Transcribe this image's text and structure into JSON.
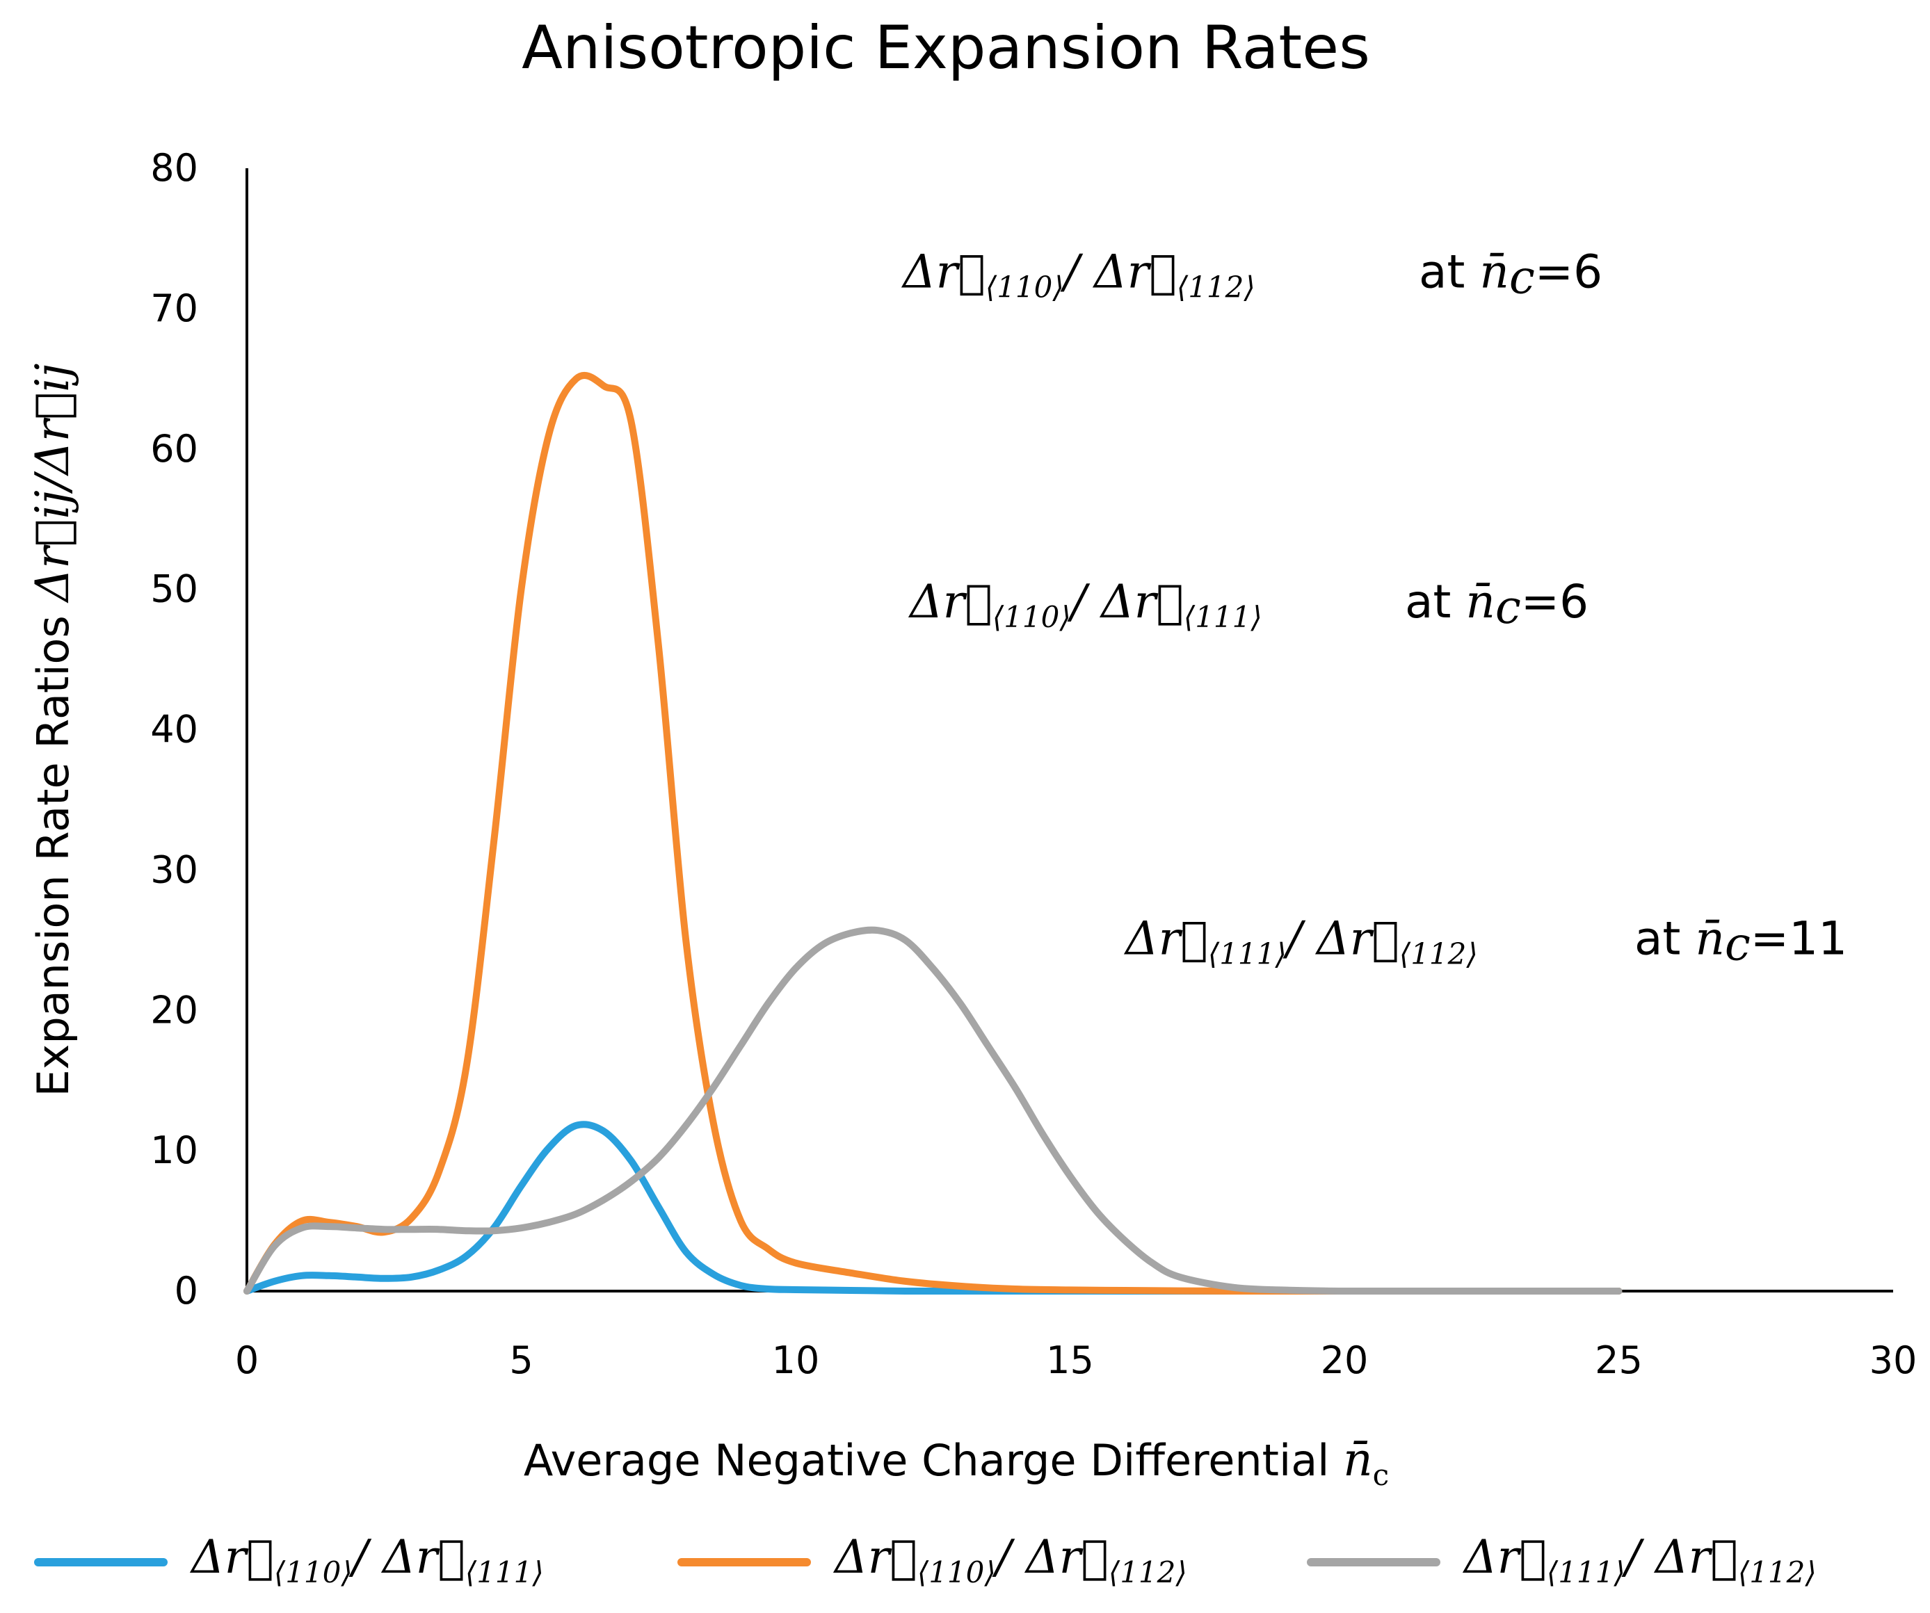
{
  "chart_data": {
    "type": "line",
    "title": "Anisotropic Expansion Rates",
    "xlabel": "Average Negative Charge Differential",
    "xlabel_symbol": "n̄c",
    "ylabel": "Expansion Rate Ratios",
    "ylabel_symbol": "Δr⃗ij/Δr⃗ij",
    "xlim": [
      0,
      30
    ],
    "ylim": [
      0,
      80
    ],
    "xticks": [
      "0",
      "5",
      "10",
      "15",
      "20",
      "25",
      "30"
    ],
    "yticks": [
      "0",
      "10",
      "20",
      "30",
      "40",
      "50",
      "60",
      "70",
      "80"
    ],
    "grid": false,
    "legend_position": "bottom",
    "series": [
      {
        "name": "Δr⃗⟨110⟩/ Δr⃗⟨111⟩",
        "num": "Δr⃗",
        "num_sub": "⟨110⟩",
        "den": "Δr⃗",
        "den_sub": "⟨111⟩",
        "color": "#29a0dd",
        "x": [
          0,
          0.5,
          1,
          1.5,
          2,
          2.5,
          3,
          3.5,
          4,
          4.5,
          5,
          5.5,
          6,
          6.5,
          7,
          7.5,
          8,
          8.5,
          9,
          9.5,
          10,
          11,
          12,
          13,
          14,
          15,
          16,
          17,
          18,
          19,
          20,
          21,
          22,
          23,
          24,
          25
        ],
        "y": [
          0,
          0.7,
          1.1,
          1.1,
          1.0,
          0.9,
          1.0,
          1.5,
          2.5,
          4.5,
          7.5,
          10.2,
          11.8,
          11.4,
          9.3,
          6.0,
          2.8,
          1.2,
          0.4,
          0.15,
          0.1,
          0.05,
          0,
          0,
          0,
          0,
          0,
          0,
          0,
          0,
          0,
          0,
          0,
          0,
          0,
          0
        ]
      },
      {
        "name": "Δr⃗⟨110⟩/ Δr⃗⟨112⟩",
        "num": "Δr⃗",
        "num_sub": "⟨110⟩",
        "den": "Δr⃗",
        "den_sub": "⟨112⟩",
        "color": "#f58a2e",
        "x": [
          0,
          0.5,
          1,
          1.5,
          2,
          2.5,
          3,
          3.5,
          4,
          4.5,
          5,
          5.5,
          6,
          6.5,
          7,
          7.5,
          8,
          8.5,
          9,
          9.5,
          10,
          11,
          12,
          13,
          14,
          15,
          16,
          17,
          18,
          19,
          20,
          21,
          22,
          23,
          24,
          25
        ],
        "y": [
          0,
          3.3,
          5.0,
          4.9,
          4.6,
          4.2,
          5.2,
          8.5,
          16,
          32,
          50,
          61,
          65,
          64.5,
          62,
          46,
          25,
          12,
          5,
          3,
          2,
          1.3,
          0.7,
          0.35,
          0.15,
          0.08,
          0.05,
          0.02,
          0,
          0,
          0,
          0,
          0,
          0,
          0,
          0
        ]
      },
      {
        "name": "Δr⃗⟨111⟩/ Δr⃗⟨112⟩",
        "num": "Δr⃗",
        "num_sub": "⟨111⟩",
        "den": "Δr⃗",
        "den_sub": "⟨112⟩",
        "color": "#a5a5a5",
        "x": [
          0,
          0.5,
          1,
          1.5,
          2,
          2.5,
          3,
          3.5,
          4,
          4.5,
          5,
          5.5,
          6,
          6.5,
          7,
          7.5,
          8,
          8.5,
          9,
          9.5,
          10,
          10.5,
          11,
          11.5,
          12,
          12.5,
          13,
          13.5,
          14,
          14.5,
          15,
          15.5,
          16,
          16.5,
          17,
          18,
          19,
          20,
          21,
          22,
          23,
          24,
          25
        ],
        "y": [
          0,
          3.2,
          4.5,
          4.6,
          4.5,
          4.4,
          4.4,
          4.4,
          4.3,
          4.3,
          4.5,
          4.9,
          5.5,
          6.5,
          7.8,
          9.5,
          11.8,
          14.5,
          17.5,
          20.5,
          23,
          24.7,
          25.5,
          25.7,
          25,
          23,
          20.5,
          17.5,
          14.5,
          11.2,
          8.2,
          5.6,
          3.6,
          2.0,
          1.0,
          0.25,
          0.06,
          0,
          0,
          0,
          0,
          0,
          0
        ]
      }
    ],
    "annotations": [
      {
        "num": "Δr⃗",
        "num_sub": "⟨110⟩",
        "den": "Δr⃗",
        "den_sub": "⟨112⟩",
        "at_text": "at",
        "nc": "n̄",
        "nc_sub": "c",
        "value": "=6",
        "y_data": 72.5
      },
      {
        "num": "Δr⃗",
        "num_sub": "⟨110⟩",
        "den": "Δr⃗",
        "den_sub": "⟨111⟩",
        "at_text": "at",
        "nc": "n̄",
        "nc_sub": "c",
        "value": "=6",
        "y_data": 49
      },
      {
        "num": "Δr⃗",
        "num_sub": "⟨111⟩",
        "den": "Δr⃗",
        "den_sub": "⟨112⟩",
        "at_text": "at",
        "nc": "n̄",
        "nc_sub": "c",
        "value": "=11",
        "y_data": 25
      }
    ]
  }
}
